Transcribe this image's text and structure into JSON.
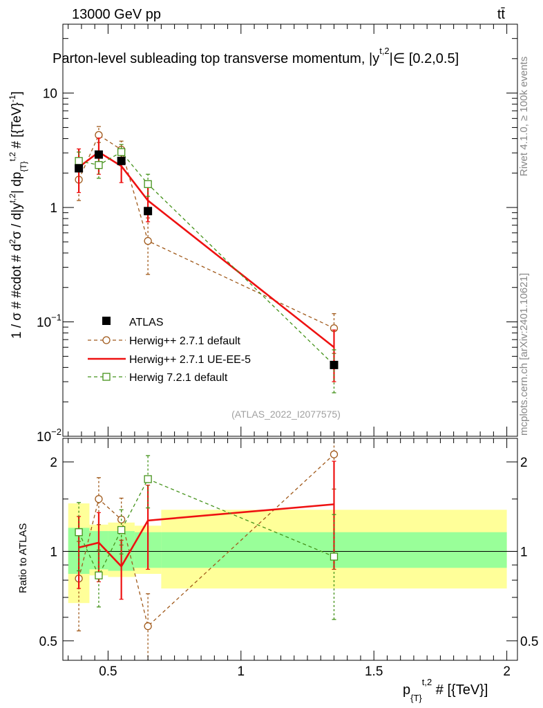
{
  "header": {
    "energy_label": "13000 GeV pp",
    "process_label": "tt̄"
  },
  "side_labels": {
    "rivet": "Rivet 4.1.0, ≥ 100k events",
    "source": "mcplots.cern.ch [arXiv:2401.10621]"
  },
  "chart_data": [
    {
      "type": "line",
      "title": "Parton-level subleading top transverse momentum, |y^{t,2}|∈ [0.2,0.5]",
      "title_parts": {
        "main": "Parton-level subleading top transverse momentum, |y",
        "sup": "t,2",
        "tail": "|∈ [0.2,0.5]"
      },
      "ylabel": "1 / σ # #cdot # d^{2}σ / d|y^{t,2}| dp_{T}^{t,2} # [{TeV}^{-1}]",
      "ylabel_parts": [
        "1 / σ # #cdot # d",
        "2",
        "σ / d|y",
        "t,2",
        "| dp",
        "{T}",
        "t,2",
        " # [{TeV}",
        "-1",
        "]"
      ],
      "yscale": "log",
      "ylim": [
        0.01,
        40
      ],
      "xlim": [
        0.33,
        2.04
      ],
      "yticks": [
        {
          "value": 0.01,
          "base": "10",
          "exp": "−2"
        },
        {
          "value": 0.1,
          "base": "10",
          "exp": "−1"
        },
        {
          "value": 1,
          "base": "1",
          "exp": ""
        },
        {
          "value": 10,
          "base": "10",
          "exp": ""
        }
      ],
      "watermark": "(ATLAS_2022_I2077575)",
      "legend": {
        "position": "bottom-left",
        "entries": [
          "ATLAS",
          "Herwig++ 2.7.1 default",
          "Herwig++ 2.7.1 UE-EE-5",
          "Herwig 7.2.1 default"
        ]
      },
      "data": {
        "name": "ATLAS",
        "x": [
          0.39,
          0.465,
          0.55,
          0.65,
          1.35
        ],
        "y": [
          2.2,
          2.9,
          2.55,
          0.93,
          0.042
        ],
        "bins": [
          [
            0.35,
            0.43
          ],
          [
            0.43,
            0.5
          ],
          [
            0.5,
            0.6
          ],
          [
            0.6,
            0.7
          ],
          [
            0.7,
            2.0
          ]
        ]
      },
      "series": [
        {
          "name": "Herwig++ 2.7.1 default",
          "color": "#a0591a",
          "marker": "circle",
          "style": "dashed",
          "x": [
            0.39,
            0.465,
            0.55,
            0.65,
            1.35
          ],
          "y": [
            1.75,
            4.3,
            3.2,
            0.51,
            0.088
          ],
          "err": [
            [
              0.6,
              0.7
            ],
            [
              0.6,
              0.8
            ],
            [
              0.55,
              0.6
            ],
            [
              0.25,
              0.3
            ],
            [
              0.035,
              0.03
            ]
          ]
        },
        {
          "name": "Herwig++ 2.7.1 UE-EE-5",
          "color": "#ee1111",
          "marker": "none",
          "style": "solid",
          "x": [
            0.39,
            0.465,
            0.55,
            0.65,
            1.35
          ],
          "y": [
            2.25,
            3.05,
            2.3,
            1.15,
            0.06
          ],
          "err": [
            [
              0.9,
              1.0
            ],
            [
              1.1,
              1.0
            ],
            [
              0.65,
              0.7
            ],
            [
              0.4,
              0.45
            ],
            [
              0.03,
              0.025
            ]
          ]
        },
        {
          "name": "Herwig 7.2.1 default",
          "color": "#44921a",
          "marker": "square",
          "style": "dashed",
          "x": [
            0.39,
            0.465,
            0.55,
            0.65,
            1.35
          ],
          "y": [
            2.55,
            2.35,
            3.05,
            1.6,
            0.042
          ],
          "err": [
            [
              0.5,
              0.5
            ],
            [
              0.55,
              0.5
            ],
            [
              0.5,
              0.5
            ],
            [
              0.35,
              0.35
            ],
            [
              0.018,
              0.015
            ]
          ]
        }
      ]
    },
    {
      "type": "line",
      "title": "",
      "ylabel": "Ratio to ATLAS",
      "xlabel": "p_{T}^{t,2} # [{TeV}]",
      "xlabel_parts": [
        "p",
        "{T}",
        "t,2",
        " # [{TeV}]"
      ],
      "yscale": "log",
      "ylim": [
        0.43,
        2.4
      ],
      "xlim": [
        0.33,
        2.04
      ],
      "yticks": [
        0.5,
        1,
        2
      ],
      "ytick_labels": [
        "0.5",
        "1",
        "2"
      ],
      "xticks": [
        0.5,
        1,
        1.5,
        2
      ],
      "xtick_labels": [
        "0.5",
        "1",
        "1.5",
        "2"
      ],
      "bands": {
        "bins": [
          [
            0.35,
            0.43
          ],
          [
            0.43,
            0.5
          ],
          [
            0.5,
            0.6
          ],
          [
            0.6,
            0.7
          ],
          [
            0.7,
            2.0
          ]
        ],
        "stat_lo": [
          0.84,
          0.87,
          0.86,
          0.88,
          0.88
        ],
        "stat_hi": [
          1.2,
          1.17,
          1.17,
          1.16,
          1.16
        ],
        "total_lo": [
          0.67,
          0.83,
          0.82,
          0.84,
          0.75
        ],
        "total_hi": [
          1.45,
          1.23,
          1.25,
          1.22,
          1.38
        ]
      },
      "series": [
        {
          "name": "Herwig++ 2.7.1 default",
          "x": [
            0.39,
            0.465,
            0.55,
            0.65,
            1.35
          ],
          "y": [
            0.81,
            1.5,
            1.28,
            0.56,
            2.12
          ],
          "err": [
            [
              0.27,
              0.27
            ],
            [
              0.27,
              0.27
            ],
            [
              0.23,
              0.23
            ],
            [
              0.16,
              0.16
            ],
            [
              0.5,
              0.5
            ]
          ]
        },
        {
          "name": "Herwig++ 2.7.1 UE-EE-5",
          "x": [
            0.39,
            0.465,
            0.55,
            0.65,
            1.35
          ],
          "y": [
            1.03,
            1.07,
            0.89,
            1.27,
            1.44
          ],
          "err": [
            [
              0.28,
              0.28
            ],
            [
              0.28,
              0.28
            ],
            [
              0.2,
              0.2
            ],
            [
              0.4,
              0.4
            ],
            [
              0.57,
              0.57
            ]
          ]
        },
        {
          "name": "Herwig 7.2.1 default",
          "x": [
            0.39,
            0.465,
            0.55,
            0.65,
            1.35
          ],
          "y": [
            1.16,
            0.83,
            1.18,
            1.75,
            0.96
          ],
          "err": [
            [
              0.3,
              0.3
            ],
            [
              0.18,
              0.18
            ],
            [
              0.2,
              0.2
            ],
            [
              0.35,
              0.35
            ],
            [
              0.37,
              0.37
            ]
          ]
        }
      ]
    }
  ]
}
